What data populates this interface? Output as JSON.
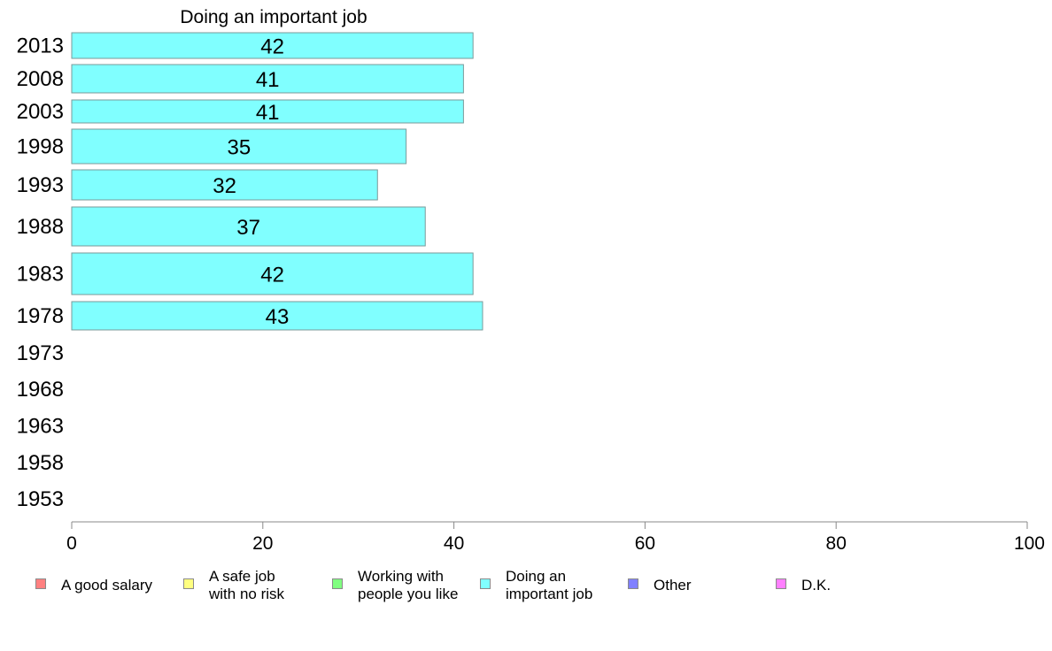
{
  "chart_data": {
    "type": "bar",
    "orientation": "horizontal",
    "title": "Doing an important job",
    "categories": [
      "2013",
      "2008",
      "2003",
      "1998",
      "1993",
      "1988",
      "1983",
      "1978",
      "1973",
      "1968",
      "1963",
      "1958",
      "1953"
    ],
    "series": [
      {
        "name": "Doing an important job",
        "color": "#80ffff",
        "values": [
          42,
          41,
          41,
          35,
          32,
          37,
          42,
          43,
          null,
          null,
          null,
          null,
          null
        ]
      }
    ],
    "xlim": [
      0,
      100
    ],
    "xticks": [
      "0",
      "20",
      "40",
      "60",
      "80",
      "100"
    ],
    "grid": false,
    "legend_position": "bottom"
  },
  "legend": [
    {
      "label": "A good salary",
      "color": "#ff8080"
    },
    {
      "label": "A safe job\nwith no risk",
      "color": "#ffff80"
    },
    {
      "label": "Working with\npeople you like",
      "color": "#80ff80"
    },
    {
      "label": "Doing an\nimportant job",
      "color": "#80ffff"
    },
    {
      "label": "Other",
      "color": "#8080ff"
    },
    {
      "label": "D.K.",
      "color": "#ff80ff"
    }
  ]
}
